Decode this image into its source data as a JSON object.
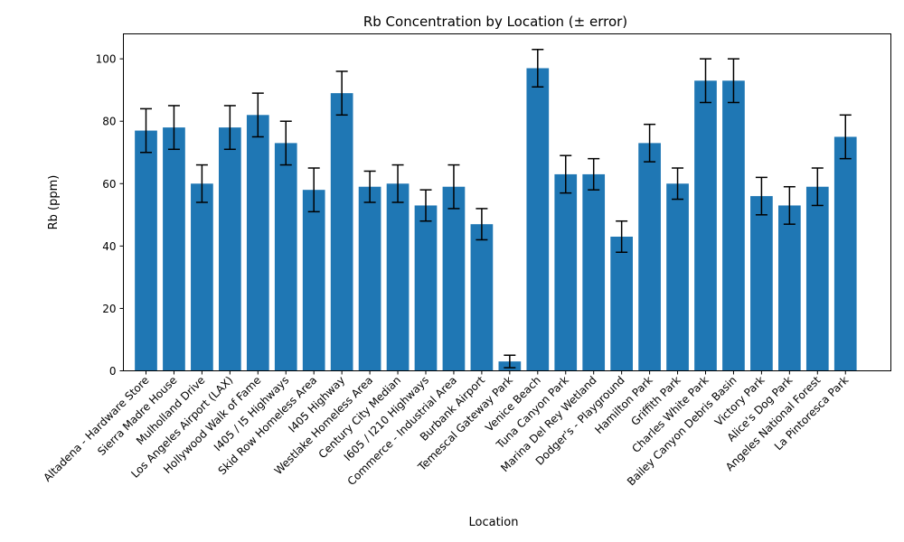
{
  "chart_data": {
    "type": "bar",
    "title": "Rb Concentration by Location (± error)",
    "xlabel": "Location",
    "ylabel": "Rb (ppm)",
    "ylim": [
      0,
      108
    ],
    "yticks": [
      0,
      20,
      40,
      60,
      80,
      100
    ],
    "grid": false,
    "bar_color": "#1f77b4",
    "categories": [
      "Altadena - Hardware Store",
      "Sierra Madre House",
      "Mulholland Drive",
      "Los Angeles Airport (LAX)",
      "Hollywood Walk of Fame",
      "I405 / I5 Highways",
      "Skid Row Homeless Area",
      "I405 Highway",
      "Westlake Homeless Area",
      "Century City Median",
      "I605 / I210 Highways",
      "Commerce - Industrial Area",
      "Burbank Airport",
      "Temescal Gateway Park",
      "Venice Beach",
      "Tuna Canyon Park",
      "Marina Del Rey Wetland",
      "Dodger's - Playground",
      "Hamilton Park",
      "Griffith Park",
      "Charles White Park",
      "Bailey Canyon Debris Basin",
      "Victory Park",
      "Alice's Dog Park",
      "Angeles National Forest",
      "La Pintoresca Park"
    ],
    "values": [
      77,
      78,
      60,
      78,
      82,
      73,
      58,
      89,
      59,
      60,
      53,
      59,
      47,
      3,
      97,
      63,
      63,
      43,
      73,
      60,
      93,
      93,
      56,
      53,
      59,
      75
    ],
    "errors": [
      7,
      7,
      6,
      7,
      7,
      7,
      7,
      7,
      5,
      6,
      5,
      7,
      5,
      2,
      6,
      6,
      5,
      5,
      6,
      5,
      7,
      7,
      6,
      6,
      6,
      7
    ]
  }
}
